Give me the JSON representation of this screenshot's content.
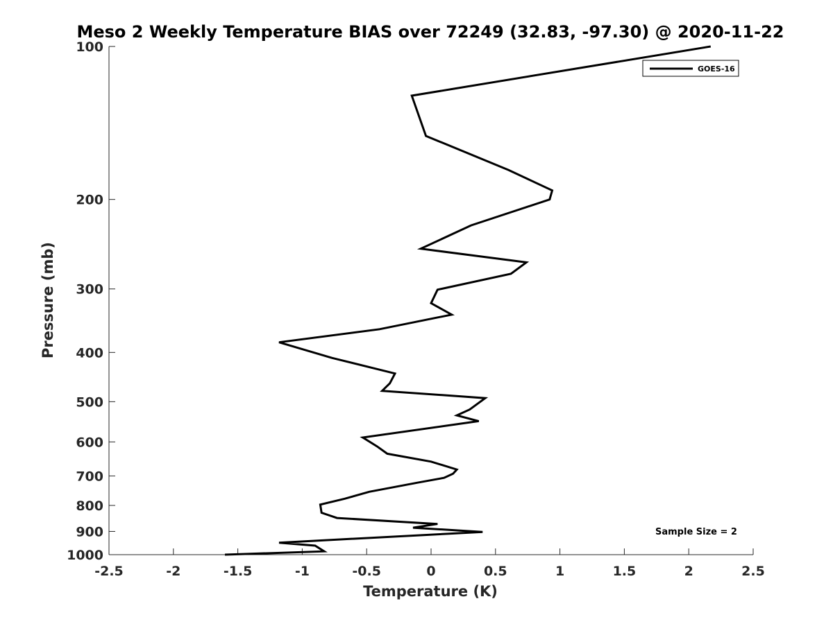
{
  "chart_data": {
    "type": "line",
    "title": "Meso 2 Weekly Temperature BIAS over 72249 (32.83, -97.30) @ 2020-11-22",
    "xlabel": "Temperature (K)",
    "ylabel": "Pressure (mb)",
    "xlim": [
      -2.5,
      2.5
    ],
    "ylim": [
      100,
      1000
    ],
    "yscale": "log",
    "yreversed": true,
    "grid": false,
    "x_ticks": [
      -2.5,
      -2,
      -1.5,
      -1,
      -0.5,
      0,
      0.5,
      1,
      1.5,
      2,
      2.5
    ],
    "x_tick_labels": [
      "-2.5",
      "-2",
      "-1.5",
      "-1",
      "-0.5",
      "0",
      "0.5",
      "1",
      "1.5",
      "2",
      "2.5"
    ],
    "y_ticks": [
      100,
      200,
      300,
      400,
      500,
      600,
      700,
      800,
      900,
      1000
    ],
    "y_tick_labels": [
      "100",
      "200",
      "300",
      "400",
      "500",
      "600",
      "700",
      "800",
      "900",
      "1000"
    ],
    "legend": {
      "position": "top-right",
      "entries": [
        "GOES-16"
      ]
    },
    "annotation": "Sample Size = 2",
    "series": [
      {
        "name": "GOES-16",
        "color": "#000000",
        "points": [
          [
            2.17,
            100
          ],
          [
            -0.15,
            125
          ],
          [
            -0.04,
            150
          ],
          [
            0.6,
            175
          ],
          [
            0.94,
            192
          ],
          [
            0.92,
            200
          ],
          [
            0.31,
            225
          ],
          [
            -0.08,
            250
          ],
          [
            0.74,
            266
          ],
          [
            0.62,
            280
          ],
          [
            0.05,
            301
          ],
          [
            0.0,
            320
          ],
          [
            0.16,
            337
          ],
          [
            -0.4,
            360
          ],
          [
            -1.18,
            382
          ],
          [
            -0.77,
            410
          ],
          [
            -0.28,
            440
          ],
          [
            -0.32,
            460
          ],
          [
            -0.38,
            476
          ],
          [
            0.42,
            492
          ],
          [
            0.3,
            518
          ],
          [
            0.2,
            532
          ],
          [
            0.37,
            546
          ],
          [
            -0.53,
            588
          ],
          [
            -0.42,
            612
          ],
          [
            -0.34,
            633
          ],
          [
            0.0,
            656
          ],
          [
            0.2,
            680
          ],
          [
            0.17,
            693
          ],
          [
            0.1,
            706
          ],
          [
            -0.11,
            722
          ],
          [
            -0.48,
            752
          ],
          [
            -0.67,
            776
          ],
          [
            -0.86,
            797
          ],
          [
            -0.85,
            827
          ],
          [
            -0.73,
            847
          ],
          [
            0.05,
            870
          ],
          [
            -0.14,
            885
          ],
          [
            0.4,
            902
          ],
          [
            -1.18,
            947
          ],
          [
            -0.9,
            960
          ],
          [
            -0.83,
            985
          ],
          [
            -1.6,
            1000
          ]
        ]
      }
    ]
  }
}
